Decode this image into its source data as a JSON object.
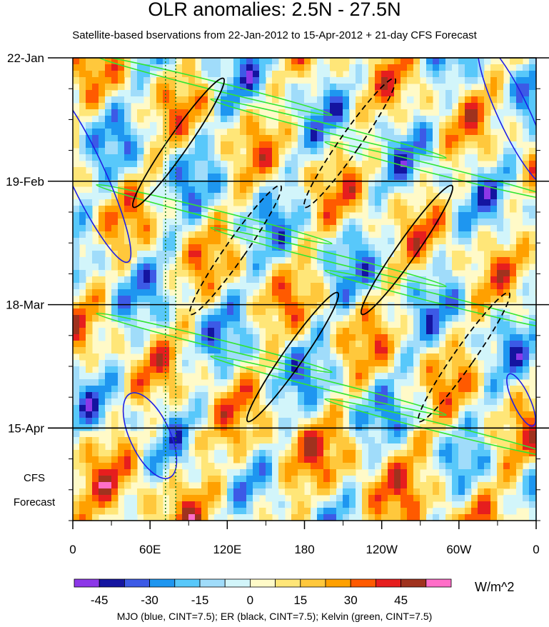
{
  "chart_data": {
    "type": "heatmap",
    "title": "OLR anomalies: 2.5N - 27.5N",
    "subtitle": "Satellite-based bservations from 22-Jan-2012 to 15-Apr-2012 + 21-day CFS Forecast",
    "xlabel": "",
    "ylabel": "",
    "x_ticks": [
      {
        "lon": 0,
        "label": "0"
      },
      {
        "lon": 60,
        "label": "60E"
      },
      {
        "lon": 120,
        "label": "120E"
      },
      {
        "lon": 180,
        "label": "180"
      },
      {
        "lon": 240,
        "label": "120W"
      },
      {
        "lon": 300,
        "label": "60W"
      },
      {
        "lon": 360,
        "label": "0"
      }
    ],
    "xlim": [
      0,
      360
    ],
    "y_ticks": [
      {
        "day": 0,
        "label": "22-Jan"
      },
      {
        "day": 28,
        "label": "19-Feb"
      },
      {
        "day": 56,
        "label": "18-Mar"
      },
      {
        "day": 84,
        "label": "15-Apr"
      }
    ],
    "ylim_days": [
      0,
      105
    ],
    "forecast_start_day": 84,
    "forecast_label_line1": "CFS",
    "forecast_label_line2": "Forecast",
    "reference_lines_lon": [
      72,
      80
    ],
    "colorbar": {
      "levels": [
        -45,
        -30,
        -15,
        0,
        15,
        30,
        45
      ],
      "level_labels": [
        "-45",
        "-30",
        "-15",
        "0",
        "15",
        "30",
        "45"
      ],
      "colors": [
        "#8c37e8",
        "#1414a0",
        "#3c5ae6",
        "#1e96f0",
        "#58c8fa",
        "#a0dcfa",
        "#d2f5fa",
        "#fffac8",
        "#ffe678",
        "#ffc83c",
        "#ffa000",
        "#ff5a00",
        "#e61e1e",
        "#a0321e",
        "#ff6ec8"
      ],
      "units": "W/m^2"
    },
    "overlays": [
      {
        "name": "MJO",
        "color": "#1e1ee6",
        "cint": 7.5
      },
      {
        "name": "ER",
        "color": "#000000",
        "cint": 7.5
      },
      {
        "name": "Kelvin",
        "color": "#32e632",
        "cint": 7.5
      }
    ],
    "footnote": "MJO (blue, CINT=7.5); ER (black, CINT=7.5); Kelvin (green, CINT=7.5)"
  }
}
